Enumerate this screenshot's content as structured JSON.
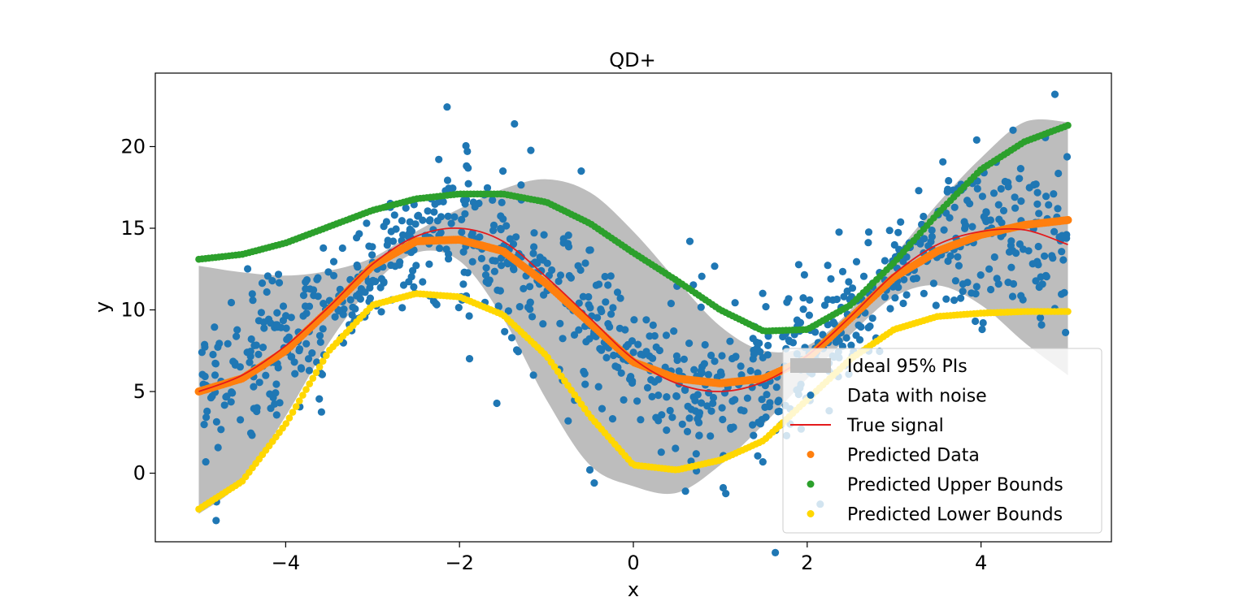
{
  "chart_data": {
    "type": "scatter",
    "title": "QD+",
    "xlabel": "x",
    "ylabel": "y",
    "xlim": [
      -5.5,
      5.5
    ],
    "ylim": [
      -4.2,
      24.5
    ],
    "x_ticks": [
      -4,
      -2,
      0,
      2,
      4
    ],
    "x_tick_labels": [
      "−4",
      "−2",
      "0",
      "2",
      "4"
    ],
    "y_ticks": [
      0,
      5,
      10,
      15,
      20
    ],
    "y_tick_labels": [
      "0",
      "5",
      "10",
      "15",
      "20"
    ],
    "grid": false,
    "legend_position": "lower right",
    "colors": {
      "band": "#bdbdbd",
      "noise": "#1f77b4",
      "true_signal": "#e41a1c",
      "predicted": "#ff7f0e",
      "upper": "#2ca02c",
      "lower": "#ffd700"
    },
    "series": [
      {
        "name": "Ideal 95% PIs",
        "kind": "band",
        "x": [
          -5,
          -4.5,
          -4,
          -3.5,
          -3,
          -2.5,
          -2,
          -1.5,
          -1,
          -0.5,
          0,
          0.5,
          1,
          1.5,
          2,
          2.5,
          3,
          3.5,
          4,
          4.5,
          5
        ],
        "lower": [
          -2.5,
          -0.5,
          3.5,
          8.0,
          11.5,
          13.5,
          13.0,
          9.5,
          4.5,
          0.5,
          -0.8,
          -1.2,
          0.5,
          3.0,
          5.8,
          8.5,
          10.8,
          11.5,
          10.3,
          8.0,
          6.0
        ],
        "upper": [
          12.7,
          12.3,
          12.1,
          12.4,
          13.2,
          14.8,
          16.2,
          17.4,
          18.0,
          17.2,
          14.8,
          11.8,
          9.0,
          7.5,
          7.8,
          10.0,
          13.3,
          16.5,
          19.3,
          21.5,
          21.5
        ]
      },
      {
        "name": "Data with noise",
        "kind": "noise_scatter",
        "n_points": 1000,
        "noise_sd": 2.6,
        "outliers": [
          [
            4.85,
            23.2
          ],
          [
            -1.5,
            18.5
          ],
          [
            -0.6,
            18.5
          ],
          [
            0.65,
            14.2
          ],
          [
            -3.0,
            12.9
          ],
          [
            -0.75,
            3.2
          ],
          [
            -0.5,
            0.2
          ],
          [
            -0.45,
            -0.6
          ],
          [
            0.6,
            -1.1
          ],
          [
            -4.8,
            -2.9
          ],
          [
            -1.15,
            6.0
          ],
          [
            3.95,
            20.4
          ]
        ]
      },
      {
        "name": "True signal",
        "kind": "line",
        "x": [
          -5,
          -4.5,
          -4,
          -3.5,
          -3,
          -2.5,
          -2,
          -1.5,
          -1,
          -0.5,
          0,
          0.5,
          1,
          1.5,
          2,
          2.5,
          3,
          3.5,
          4,
          4.5,
          5
        ],
        "y": [
          5.0,
          6.0,
          7.8,
          10.2,
          12.8,
          14.5,
          15.0,
          14.2,
          12.0,
          9.5,
          7.0,
          5.5,
          5.0,
          5.6,
          7.2,
          9.6,
          12.2,
          14.0,
          14.8,
          14.9,
          14.0
        ]
      },
      {
        "name": "Predicted Data",
        "kind": "dot_series",
        "x": [
          -5,
          -4.5,
          -4,
          -3.5,
          -3,
          -2.5,
          -2,
          -1.5,
          -1,
          -0.5,
          0,
          0.5,
          1,
          1.5,
          2,
          2.5,
          3,
          3.5,
          4,
          4.5,
          5
        ],
        "y": [
          5.0,
          5.8,
          7.5,
          10.0,
          12.7,
          14.2,
          14.3,
          13.6,
          11.6,
          9.2,
          6.8,
          5.8,
          5.5,
          5.8,
          7.0,
          9.5,
          12.0,
          13.6,
          14.6,
          15.2,
          15.5
        ]
      },
      {
        "name": "Predicted Upper Bounds",
        "kind": "dot_series",
        "x": [
          -5,
          -4.5,
          -4,
          -3.5,
          -3,
          -2.5,
          -2,
          -1.5,
          -1,
          -0.5,
          0,
          0.5,
          1,
          1.5,
          2,
          2.5,
          3,
          3.5,
          4,
          4.5,
          5
        ],
        "y": [
          13.1,
          13.4,
          14.1,
          15.1,
          16.1,
          16.8,
          17.1,
          17.1,
          16.6,
          15.3,
          13.5,
          11.8,
          10.0,
          8.7,
          8.8,
          10.3,
          12.9,
          15.9,
          18.6,
          20.3,
          21.3
        ]
      },
      {
        "name": "Predicted Lower Bounds",
        "kind": "dot_series",
        "x": [
          -5,
          -4.5,
          -4,
          -3.5,
          -3,
          -2.5,
          -2,
          -1.5,
          -1,
          -0.5,
          0,
          0.5,
          1,
          1.5,
          2,
          2.5,
          3,
          3.5,
          4,
          4.5,
          5
        ],
        "y": [
          -2.2,
          -0.5,
          3.0,
          7.5,
          10.3,
          11.0,
          10.8,
          9.7,
          7.2,
          3.5,
          0.5,
          0.2,
          0.8,
          2.0,
          4.5,
          7.0,
          8.8,
          9.6,
          9.8,
          9.9,
          9.9
        ]
      }
    ]
  }
}
